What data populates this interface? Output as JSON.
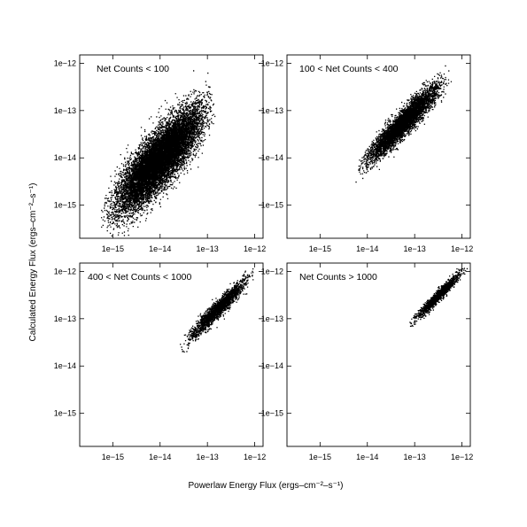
{
  "figure": {
    "xlabel": "Powerlaw Energy Flux (ergs–cm⁻²–s⁻¹)",
    "ylabel": "Calculated Energy Flux (ergs–cm⁻²–s⁻¹)"
  },
  "chart_data": [
    {
      "type": "scatter",
      "title": "Net Counts < 100",
      "xscale": "log",
      "yscale": "log",
      "xlim": [
        2e-16,
        1.5e-12
      ],
      "ylim": [
        2e-16,
        1.5e-12
      ],
      "xticks": [
        "1e−15",
        "1e−14",
        "1e−13",
        "1e−12"
      ],
      "yticks": [
        "1e−15",
        "1e−14",
        "1e−13",
        "1e−12"
      ],
      "cloud": {
        "x_log_range": [
          -15.3,
          -12.75
        ],
        "scatter_dex": 0.3,
        "n_points": 12000,
        "relation": "y = x"
      }
    },
    {
      "type": "scatter",
      "title": "100 < Net Counts < 400",
      "xscale": "log",
      "yscale": "log",
      "xlim": [
        2e-16,
        1.5e-12
      ],
      "ylim": [
        2e-16,
        1.5e-12
      ],
      "xticks": [
        "1e−15",
        "1e−14",
        "1e−13",
        "1e−12"
      ],
      "yticks": [
        "1e−15",
        "1e−14",
        "1e−13",
        "1e−12"
      ],
      "cloud": {
        "x_log_range": [
          -14.3,
          -12.2
        ],
        "scatter_dex": 0.14,
        "n_points": 5000,
        "relation": "y = x"
      }
    },
    {
      "type": "scatter",
      "title": "400 < Net Counts < 1000",
      "xscale": "log",
      "yscale": "log",
      "xlim": [
        2e-16,
        1.5e-12
      ],
      "ylim": [
        2e-16,
        1.5e-12
      ],
      "xticks": [
        "1e−15",
        "1e−14",
        "1e−13",
        "1e−12"
      ],
      "yticks": [
        "1e−15",
        "1e−14",
        "1e−13",
        "1e−12"
      ],
      "cloud": {
        "x_log_range": [
          -13.6,
          -11.95
        ],
        "scatter_dex": 0.09,
        "n_points": 2200,
        "relation": "y = x"
      }
    },
    {
      "type": "scatter",
      "title": "Net Counts > 1000",
      "xscale": "log",
      "yscale": "log",
      "xlim": [
        2e-16,
        1.5e-12
      ],
      "ylim": [
        2e-16,
        1.5e-12
      ],
      "xticks": [
        "1e−15",
        "1e−14",
        "1e−13",
        "1e−12"
      ],
      "yticks": [
        "1e−15",
        "1e−14",
        "1e−13",
        "1e−12"
      ],
      "cloud": {
        "x_log_range": [
          -13.2,
          -11.85
        ],
        "scatter_dex": 0.06,
        "n_points": 1500,
        "relation": "y = x"
      }
    }
  ]
}
